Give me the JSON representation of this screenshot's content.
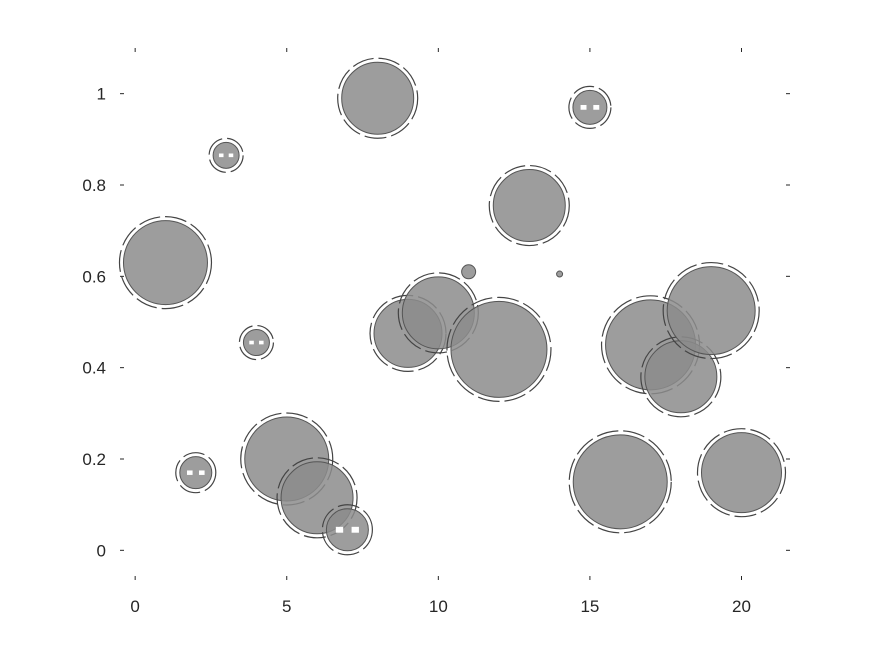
{
  "chart_data": {
    "type": "scatter",
    "title": "",
    "xlabel": "",
    "ylabel": "",
    "xlim": [
      -0.5,
      21.6
    ],
    "ylim": [
      -0.065,
      1.1
    ],
    "x_ticks": [
      0,
      5,
      10,
      15,
      20
    ],
    "y_ticks": [
      0,
      0.2,
      0.4,
      0.6,
      0.8,
      1
    ],
    "x_tick_labels": [
      "0",
      "5",
      "10",
      "15",
      "20"
    ],
    "y_tick_labels": [
      "0",
      "0.2",
      "0.4",
      "0.6",
      "0.8",
      "1"
    ],
    "grid": false,
    "marker_color": "#8c8c8c",
    "series": [
      {
        "x": [
          1,
          2,
          3,
          4,
          5,
          6,
          7,
          8,
          9,
          10,
          11,
          12,
          13,
          14,
          15,
          16,
          17,
          18,
          19,
          20
        ],
        "y": [
          0.63,
          0.17,
          0.865,
          0.455,
          0.2,
          0.115,
          0.045,
          0.99,
          0.475,
          0.52,
          0.61,
          0.44,
          0.755,
          0.605,
          0.97,
          0.15,
          0.45,
          0.38,
          0.525,
          0.17
        ],
        "size": [
          42,
          16,
          13,
          13,
          42,
          36,
          21,
          36,
          34,
          36,
          7,
          48,
          36,
          3,
          17,
          47,
          45,
          36,
          44,
          40
        ]
      }
    ]
  }
}
